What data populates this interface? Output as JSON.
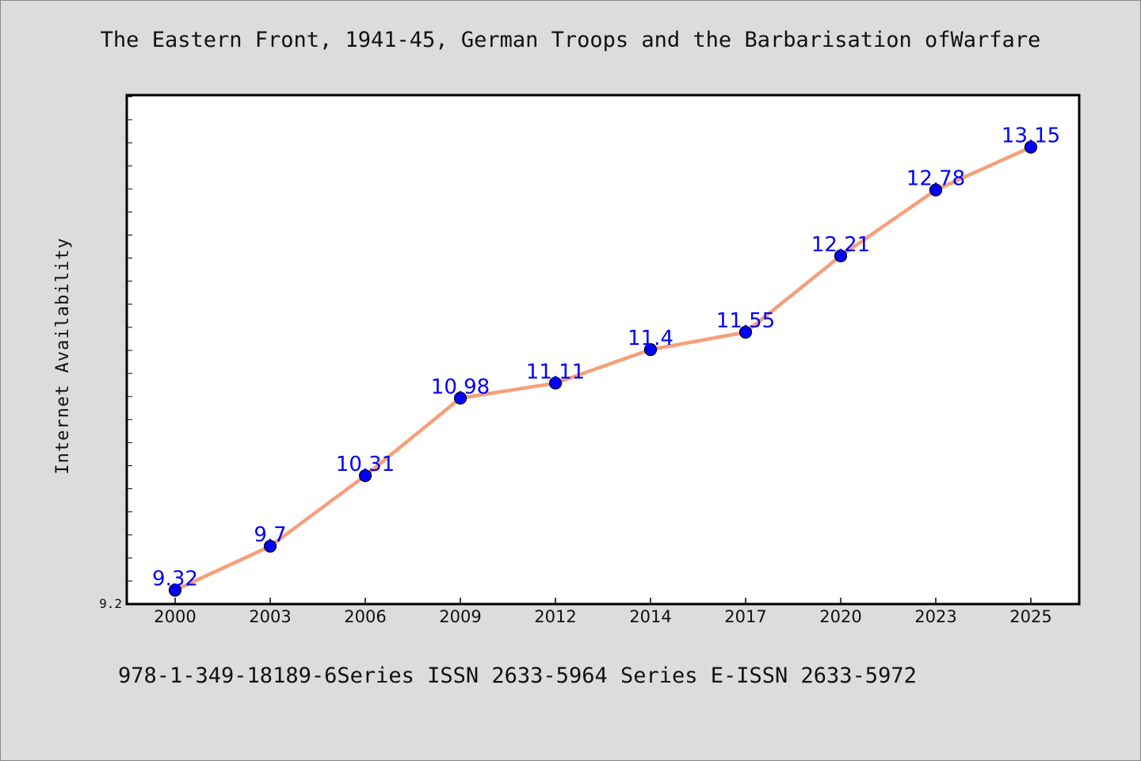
{
  "title": "The Eastern Front, 1941-45, German Troops and the Barbarisation ofWarfare",
  "footer": "978-1-349-18189-6Series ISSN 2633-5964 Series E-ISSN 2633-5972",
  "colors": {
    "background": "#dcdcdc",
    "plot_bg": "#ffffff",
    "line": "#f4a07a",
    "marker": "#0000ff",
    "data_label": "#0000ff"
  },
  "chart_data": {
    "type": "line",
    "title": "The Eastern Front, 1941-45, German Troops and the Barbarisation ofWarfare",
    "xlabel": "",
    "ylabel": "Internet Availability",
    "categories": [
      "2000",
      "2003",
      "2006",
      "2009",
      "2012",
      "2014",
      "2017",
      "2020",
      "2023",
      "2025"
    ],
    "values": [
      9.32,
      9.7,
      10.31,
      10.98,
      11.11,
      11.4,
      11.55,
      12.21,
      12.78,
      13.15
    ],
    "data_labels": [
      "9.32",
      "9.7",
      "10.31",
      "10.98",
      "11.11",
      "11.4",
      "11.55",
      "12.21",
      "12.78",
      "13.15"
    ],
    "ylim": [
      9.2,
      13.6
    ],
    "y_tick_labels": [
      "9.2"
    ],
    "grid": false,
    "legend": "none"
  }
}
